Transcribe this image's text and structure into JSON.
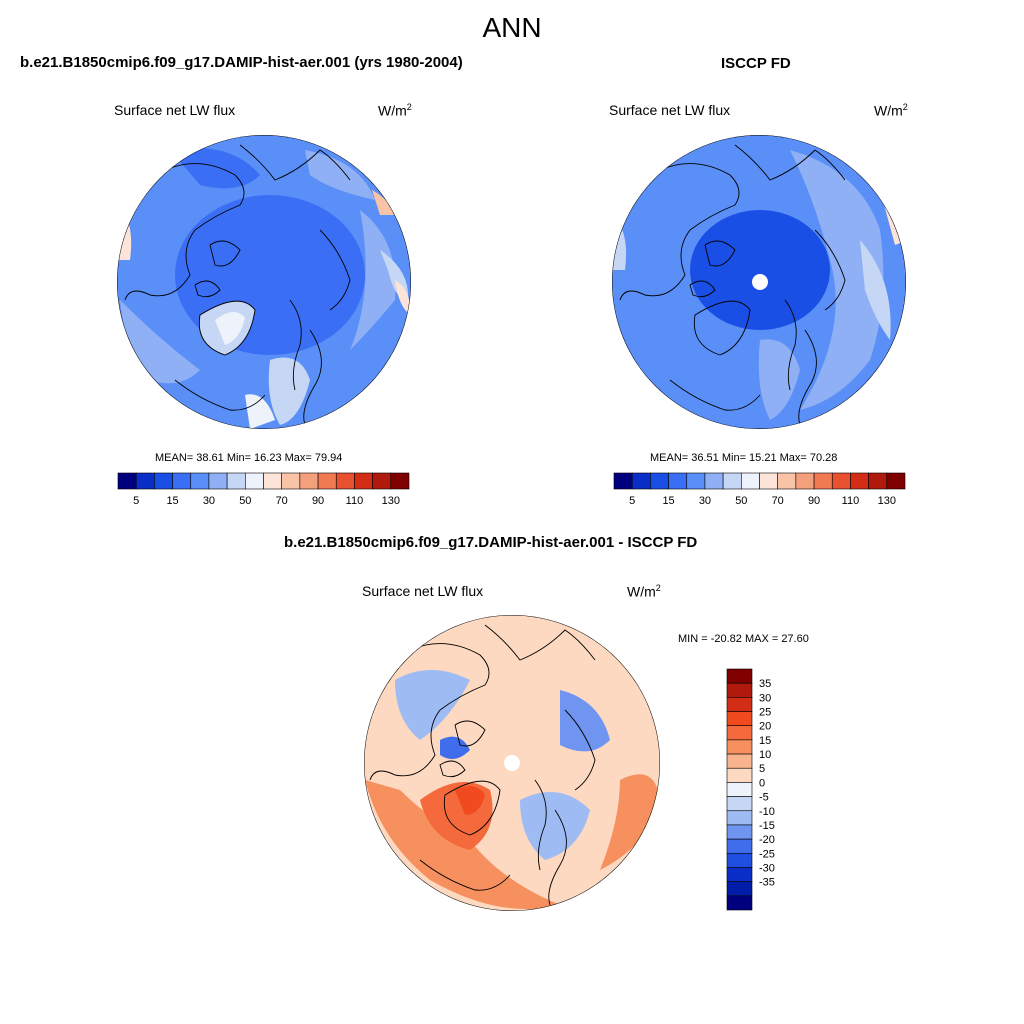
{
  "figure": {
    "title": "ANN",
    "panel1": {
      "title": "b.e21.B1850cmip6.f09_g17.DAMIP-hist-aer.001 (yrs 1980-2004)",
      "left_label": "Surface net LW flux",
      "units": "W/m",
      "units_sup": "2",
      "stats": "MEAN=  38.61  Min=  16.23  Max=  79.94"
    },
    "panel2": {
      "title": "ISCCP FD",
      "left_label": "Surface net LW flux",
      "units": "W/m",
      "units_sup": "2",
      "stats": "MEAN=  36.51  Min=  15.21  Max=  70.28"
    },
    "panel3": {
      "title": "b.e21.B1850cmip6.f09_g17.DAMIP-hist-aer.001 - ISCCP FD",
      "left_label": "Surface net LW flux",
      "units": "W/m",
      "units_sup": "2",
      "stats": "MIN = -20.82 MAX =  27.60"
    }
  },
  "chart_data": [
    {
      "type": "heatmap",
      "projection": "north-polar-stereographic",
      "title": "b.e21.B1850cmip6.f09_g17.DAMIP-hist-aer.001 (yrs 1980-2004)",
      "variable": "Surface net LW flux",
      "units": "W/m2",
      "mean": 38.61,
      "min": 16.23,
      "max": 79.94,
      "colorbar": {
        "orientation": "horizontal",
        "colors": [
          "#00007f",
          "#0a2fc9",
          "#1a4fe6",
          "#3a6ff5",
          "#5a8ff8",
          "#8fb0f5",
          "#c5d7f5",
          "#eef3fb",
          "#fde4d8",
          "#f9c3a8",
          "#f5a07c",
          "#f07a52",
          "#e8512f",
          "#d42d16",
          "#b01a0c",
          "#800000"
        ],
        "tick_labels": [
          "5",
          "15",
          "30",
          "50",
          "70",
          "90",
          "110",
          "130"
        ]
      }
    },
    {
      "type": "heatmap",
      "projection": "north-polar-stereographic",
      "title": "ISCCP FD",
      "variable": "Surface net LW flux",
      "units": "W/m2",
      "mean": 36.51,
      "min": 15.21,
      "max": 70.28,
      "colorbar": {
        "orientation": "horizontal",
        "colors": [
          "#00007f",
          "#0a2fc9",
          "#1a4fe6",
          "#3a6ff5",
          "#5a8ff8",
          "#8fb0f5",
          "#c5d7f5",
          "#eef3fb",
          "#fde4d8",
          "#f9c3a8",
          "#f5a07c",
          "#f07a52",
          "#e8512f",
          "#d42d16",
          "#b01a0c",
          "#800000"
        ],
        "tick_labels": [
          "5",
          "15",
          "30",
          "50",
          "70",
          "90",
          "110",
          "130"
        ]
      }
    },
    {
      "type": "heatmap",
      "projection": "north-polar-stereographic",
      "title": "b.e21.B1850cmip6.f09_g17.DAMIP-hist-aer.001 - ISCCP FD",
      "variable": "Surface net LW flux",
      "units": "W/m2",
      "min": -20.82,
      "max": 27.6,
      "colorbar": {
        "orientation": "vertical",
        "colors": [
          "#800000",
          "#b01a0c",
          "#d42d16",
          "#f04a1e",
          "#f46a3c",
          "#f7905f",
          "#f9b48f",
          "#fcd9c0",
          "#eef3fb",
          "#c5d7f5",
          "#9ebcf3",
          "#6f95f0",
          "#3f6deb",
          "#1f4fe0",
          "#0a2fc9",
          "#001ca8",
          "#00007f"
        ],
        "tick_labels": [
          "35",
          "30",
          "25",
          "20",
          "15",
          "10",
          "5",
          "0",
          "-5",
          "-10",
          "-15",
          "-20",
          "-25",
          "-30",
          "-35"
        ]
      }
    }
  ]
}
